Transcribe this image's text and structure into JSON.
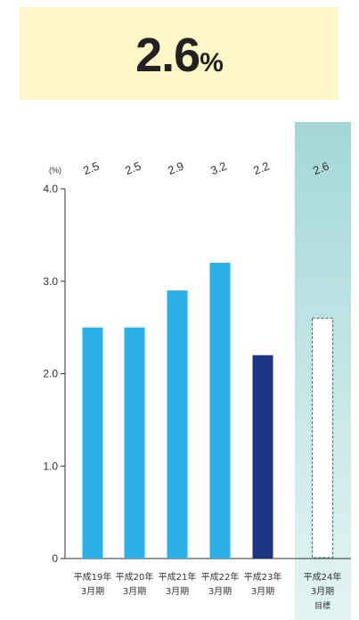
{
  "headline": {
    "value": "2.6",
    "unit": "%"
  },
  "chart_data": {
    "type": "bar",
    "unit": "(%)",
    "ylim": [
      0,
      4.0
    ],
    "yticks": [
      "0",
      "1.0",
      "2.0",
      "3.0",
      "4.0"
    ],
    "categories": [
      {
        "line1": "平成19年",
        "line2": "3月期",
        "line3": ""
      },
      {
        "line1": "平成20年",
        "line2": "3月期",
        "line3": ""
      },
      {
        "line1": "平成21年",
        "line2": "3月期",
        "line3": ""
      },
      {
        "line1": "平成22年",
        "line2": "3月期",
        "line3": ""
      },
      {
        "line1": "平成23年",
        "line2": "3月期",
        "line3": ""
      },
      {
        "line1": "平成24年",
        "line2": "3月期",
        "line3": "目標"
      }
    ],
    "values": [
      2.5,
      2.5,
      2.9,
      3.2,
      2.2,
      2.6
    ],
    "value_labels": [
      "2.5",
      "2.5",
      "2.9",
      "3.2",
      "2.2",
      "2.6"
    ],
    "styles": [
      "normal",
      "normal",
      "normal",
      "normal",
      "highlight",
      "target"
    ],
    "colors": {
      "normal": "#29b0e6",
      "highlight": "#1c3582",
      "target_border": "#3a7f80",
      "target_panel_top": "#a3d8d6",
      "target_panel_bottom": "#e3f4f3"
    }
  }
}
